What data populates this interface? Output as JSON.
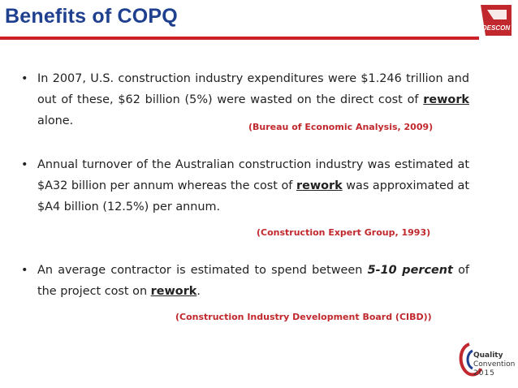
{
  "slide": {
    "title": "Benefits of COPQ",
    "brand_color": "#1f3f8f",
    "accent_color": "#cf2027"
  },
  "logo": {
    "text": "DESCON"
  },
  "bullets": [
    {
      "text_a": "In 2007, U.S. construction industry expenditures were $1.246 trillion and out of these, $62 billion (5%) were wasted on the direct cost of ",
      "emph": "rework",
      "text_b": " alone.",
      "source": "(Bureau of Economic Analysis, 2009)"
    },
    {
      "text_a": "Annual turnover of the Australian construction industry was estimated at $A32 billion per annum whereas the cost of ",
      "emph": "rework",
      "text_b": " was approximated at $A4 billion (12.5%) per annum.",
      "source": "(Construction Expert Group, 1993)"
    },
    {
      "text_a": "An average contractor is estimated to spend between ",
      "emph_bi": "5-10 percent",
      "text_b": " of the project cost on ",
      "emph": "rework",
      "text_c": ".",
      "source": "(Construction Industry Development Board (CIBD))"
    }
  ],
  "footer_logo": {
    "line1": "Quality",
    "line2": "Convention",
    "line3": "2015"
  }
}
